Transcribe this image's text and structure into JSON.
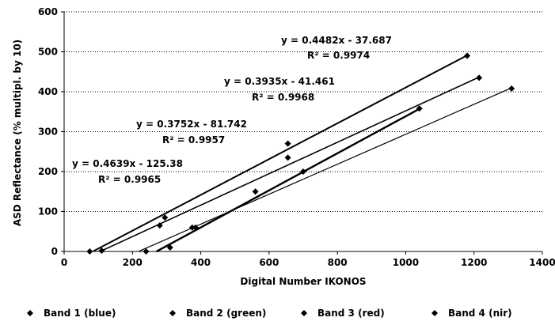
{
  "chart_data": {
    "type": "scatter",
    "xlabel": "Digital Number IKONOS",
    "ylabel": "ASD Reflectance (% multipl. by 10)",
    "xlim": [
      0,
      1400
    ],
    "ylim": [
      0,
      600
    ],
    "x_ticks": [
      "0",
      "200",
      "400",
      "600",
      "800",
      "1000",
      "1200",
      "1400"
    ],
    "y_ticks": [
      "0",
      "100",
      "200",
      "300",
      "400",
      "500",
      "600"
    ],
    "grid": "horizontal dotted",
    "legend_position": "bottom",
    "series": [
      {
        "name": "Band 1 (blue)",
        "points": [
          [
            295,
            85
          ],
          [
            655,
            270
          ],
          [
            1180,
            490
          ]
        ],
        "trendline": {
          "slope": 0.4482,
          "intercept": -37.687,
          "x_range": [
            85,
            1180
          ],
          "equation": "y = 0.4482x - 37.687",
          "r2": "R² = 0.9974"
        }
      },
      {
        "name": "Band 2 (green)",
        "points": [
          [
            110,
            2
          ],
          [
            280,
            65
          ],
          [
            655,
            235
          ],
          [
            1215,
            435
          ]
        ],
        "trendline": {
          "slope": 0.3935,
          "intercept": -41.461,
          "x_range": [
            105,
            1215
          ],
          "equation": "y = 0.3935x - 41.461",
          "r2": "R² = 0.9968"
        }
      },
      {
        "name": "Band 3 (red)",
        "points": [
          [
            75,
            0
          ],
          [
            375,
            60
          ],
          [
            700,
            200
          ],
          [
            1310,
            408
          ]
        ],
        "trendline": {
          "slope": 0.3752,
          "intercept": -81.742,
          "x_range": [
            218,
            1310
          ],
          "equation": "y = 0.3752x - 81.742",
          "r2": "R² = 0.9957"
        }
      },
      {
        "name": "Band 4 (nir)",
        "points": [
          [
            240,
            0
          ],
          [
            310,
            10
          ],
          [
            385,
            60
          ],
          [
            560,
            150
          ],
          [
            1040,
            358
          ]
        ],
        "trendline": {
          "slope": 0.4639,
          "intercept": -125.38,
          "x_range": [
            270,
            1040
          ],
          "equation": "y = 0.4639x - 125.38",
          "r2": "R² = 0.9965"
        }
      }
    ]
  }
}
